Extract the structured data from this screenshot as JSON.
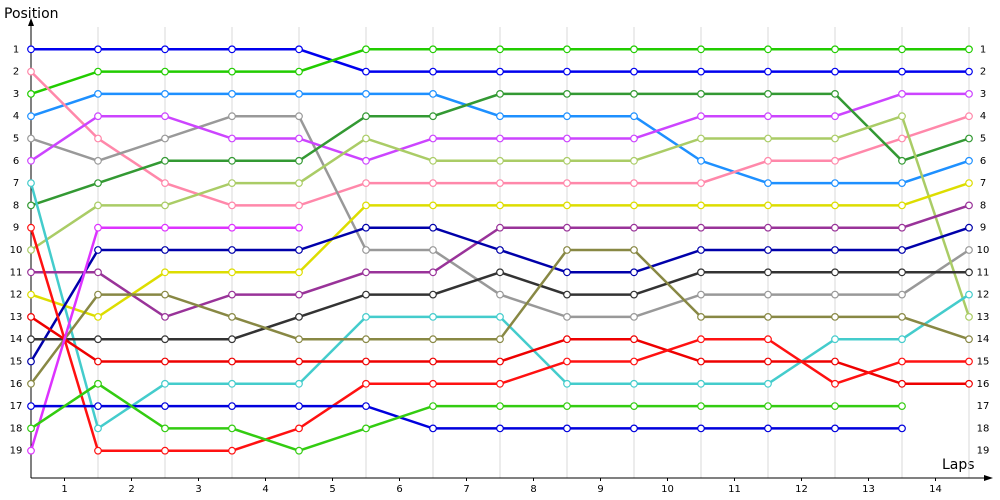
{
  "chart_data": {
    "type": "line",
    "y_label": "Position",
    "x_label": "Laps",
    "x": [
      0,
      1,
      2,
      3,
      4,
      5,
      6,
      7,
      8,
      9,
      10,
      11,
      12,
      13,
      14
    ],
    "xlim": [
      0,
      14
    ],
    "xticks": [
      {
        "value": 0.5,
        "label": "1"
      },
      {
        "value": 1.5,
        "label": "2"
      },
      {
        "value": 2.5,
        "label": "3"
      },
      {
        "value": 3.5,
        "label": "4"
      },
      {
        "value": 4.5,
        "label": "5"
      },
      {
        "value": 5.5,
        "label": "6"
      },
      {
        "value": 6.5,
        "label": "7"
      },
      {
        "value": 7.5,
        "label": "8"
      },
      {
        "value": 8.5,
        "label": "9"
      },
      {
        "value": 9.5,
        "label": "10"
      },
      {
        "value": 10.5,
        "label": "11"
      },
      {
        "value": 11.5,
        "label": "12"
      },
      {
        "value": 12.5,
        "label": "13"
      },
      {
        "value": 13.5,
        "label": "14"
      }
    ],
    "ylim": [
      0,
      20
    ],
    "y_inverted": true,
    "yticks": [
      1,
      2,
      3,
      4,
      5,
      6,
      7,
      8,
      9,
      10,
      11,
      12,
      13,
      14,
      15,
      16,
      17,
      18,
      19
    ],
    "grid": true,
    "series": [
      {
        "color": "#0000ee",
        "values": [
          1,
          1,
          1,
          1,
          1,
          2,
          2,
          2,
          2,
          2,
          2,
          2,
          2,
          2,
          2
        ]
      },
      {
        "color": "#22cc00",
        "values": [
          3,
          2,
          2,
          2,
          2,
          1,
          1,
          1,
          1,
          1,
          1,
          1,
          1,
          1,
          1
        ]
      },
      {
        "color": "#1e90ff",
        "values": [
          4,
          3,
          3,
          3,
          3,
          3,
          3,
          4,
          4,
          4,
          6,
          7,
          7,
          7,
          6
        ]
      },
      {
        "color": "#ff88aa",
        "values": [
          2,
          5,
          7,
          8,
          8,
          7,
          7,
          7,
          7,
          7,
          7,
          6,
          6,
          5,
          4
        ]
      },
      {
        "color": "#999999",
        "values": [
          5,
          6,
          5,
          4,
          4,
          10,
          10,
          12,
          13,
          13,
          12,
          12,
          12,
          12,
          10
        ]
      },
      {
        "color": "#cc44ff",
        "values": [
          6,
          4,
          4,
          5,
          5,
          6,
          5,
          5,
          5,
          5,
          4,
          4,
          4,
          3,
          3
        ]
      },
      {
        "color": "#339933",
        "values": [
          8,
          7,
          6,
          6,
          6,
          4,
          4,
          3,
          3,
          3,
          3,
          3,
          3,
          6,
          5
        ]
      },
      {
        "color": "#aacc66",
        "values": [
          10,
          8,
          8,
          7,
          7,
          5,
          6,
          6,
          6,
          6,
          5,
          5,
          5,
          4,
          13
        ]
      },
      {
        "color": "#44cccc",
        "values": [
          7,
          18,
          16,
          16,
          16,
          13,
          13,
          13,
          16,
          16,
          16,
          16,
          14,
          14,
          12
        ]
      },
      {
        "color": "#dddd00",
        "values": [
          12,
          13,
          11,
          11,
          11,
          8,
          8,
          8,
          8,
          8,
          8,
          8,
          8,
          8,
          7
        ]
      },
      {
        "color": "#993399",
        "values": [
          11,
          11,
          13,
          12,
          12,
          11,
          11,
          9,
          9,
          9,
          9,
          9,
          9,
          9,
          8
        ]
      },
      {
        "color": "#0000aa",
        "values": [
          15,
          10,
          10,
          10,
          10,
          9,
          9,
          10,
          11,
          11,
          10,
          10,
          10,
          10,
          9
        ]
      },
      {
        "color": "#333333",
        "values": [
          14,
          14,
          14,
          14,
          13,
          12,
          12,
          11,
          12,
          12,
          11,
          11,
          11,
          11,
          11
        ]
      },
      {
        "color": "#888844",
        "values": [
          16,
          12,
          12,
          13,
          14,
          14,
          14,
          14,
          10,
          10,
          13,
          13,
          13,
          13,
          14
        ]
      },
      {
        "color": "#ee0000",
        "values": [
          13,
          15,
          15,
          15,
          15,
          15,
          15,
          15,
          14,
          14,
          15,
          15,
          15,
          16,
          16
        ]
      },
      {
        "color": "#ff1111",
        "values": [
          9,
          19,
          19,
          19,
          18,
          16,
          16,
          16,
          15,
          15,
          14,
          14,
          16,
          15,
          15
        ]
      },
      {
        "color": "#dd33ff",
        "values": [
          19,
          9,
          9,
          9,
          9,
          null,
          null,
          null,
          null,
          null,
          null,
          null,
          null,
          null,
          null
        ]
      },
      {
        "color": "#0000dd",
        "values": [
          17,
          17,
          17,
          17,
          17,
          17,
          18,
          18,
          18,
          18,
          18,
          18,
          18,
          18,
          null
        ]
      },
      {
        "color": "#33cc11",
        "values": [
          18,
          16,
          18,
          18,
          19,
          18,
          17,
          17,
          17,
          17,
          17,
          17,
          17,
          17,
          null
        ]
      }
    ]
  }
}
